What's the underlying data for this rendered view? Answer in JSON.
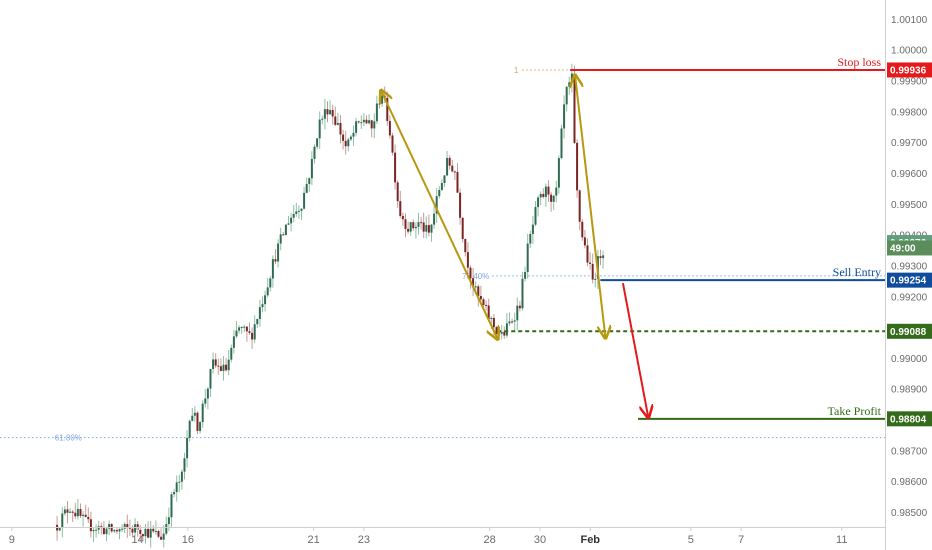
{
  "chart_data": {
    "type": "candlestick",
    "y_ticks": [
      "1.00100",
      "1.00000",
      "0.99900",
      "0.99800",
      "0.99700",
      "0.99600",
      "0.99500",
      "0.99400",
      "0.99300",
      "0.99200",
      "0.99100",
      "0.99000",
      "0.98900",
      "0.98800",
      "0.98700",
      "0.98600",
      "0.98500"
    ],
    "x_ticks": [
      {
        "label": "9",
        "day": 9
      },
      {
        "label": "14",
        "day": 14
      },
      {
        "label": "16",
        "day": 16
      },
      {
        "label": "21",
        "day": 21
      },
      {
        "label": "23",
        "day": 23
      },
      {
        "label": "28",
        "day": 28
      },
      {
        "label": "30",
        "day": 30
      },
      {
        "label": "Feb",
        "day": 32,
        "bold": true
      },
      {
        "label": "5",
        "day": 36
      },
      {
        "label": "7",
        "day": 38
      },
      {
        "label": "11",
        "day": 42
      }
    ],
    "ylim": [
      0.98453,
      1.00163
    ],
    "xlim": [
      8.53,
      43.72
    ],
    "price_path": [
      [
        10.8,
        0.9846
      ],
      [
        11.3,
        0.9852
      ],
      [
        12.0,
        0.9846
      ],
      [
        13.0,
        0.9844
      ],
      [
        14.0,
        0.9845
      ],
      [
        15.0,
        0.9842
      ],
      [
        15.4,
        0.9856
      ],
      [
        15.8,
        0.9862
      ],
      [
        16.1,
        0.9884
      ],
      [
        16.4,
        0.9878
      ],
      [
        17.0,
        0.9898
      ],
      [
        17.5,
        0.9896
      ],
      [
        18.0,
        0.991
      ],
      [
        18.5,
        0.9907
      ],
      [
        19.0,
        0.992
      ],
      [
        19.5,
        0.9934
      ],
      [
        20.0,
        0.9945
      ],
      [
        20.5,
        0.995
      ],
      [
        20.9,
        0.9962
      ],
      [
        21.2,
        0.9976
      ],
      [
        21.6,
        0.9982
      ],
      [
        22.0,
        0.9975
      ],
      [
        22.3,
        0.9968
      ],
      [
        22.7,
        0.9975
      ],
      [
        23.0,
        0.9978
      ],
      [
        23.3,
        0.9974
      ],
      [
        23.7,
        0.9987
      ],
      [
        24.0,
        0.9976
      ],
      [
        24.4,
        0.9948
      ],
      [
        24.8,
        0.9942
      ],
      [
        25.2,
        0.9944
      ],
      [
        25.6,
        0.994
      ],
      [
        26.0,
        0.9955
      ],
      [
        26.3,
        0.9963
      ],
      [
        26.6,
        0.9962
      ],
      [
        27.0,
        0.9936
      ],
      [
        27.4,
        0.9922
      ],
      [
        27.8,
        0.9916
      ],
      [
        28.2,
        0.991
      ],
      [
        28.5,
        0.9907
      ],
      [
        28.9,
        0.9913
      ],
      [
        29.2,
        0.9918
      ],
      [
        29.5,
        0.9935
      ],
      [
        29.9,
        0.995
      ],
      [
        30.3,
        0.9955
      ],
      [
        30.6,
        0.995
      ],
      [
        31.0,
        0.9985
      ],
      [
        31.3,
        0.9991
      ],
      [
        31.4,
        0.996
      ],
      [
        31.6,
        0.9943
      ],
      [
        31.9,
        0.9932
      ],
      [
        32.1,
        0.9925
      ],
      [
        32.4,
        0.9934
      ],
      [
        32.6,
        0.9937
      ]
    ],
    "annotations": {
      "stop_loss": {
        "label": "Stop loss",
        "value": "0.99936",
        "price": 0.99936,
        "x_start": 31.2,
        "color": "#e5191c"
      },
      "sell_entry": {
        "label": "Sell Entry",
        "value": "0.99254",
        "price": 0.99254,
        "x_start": 32.4,
        "color": "#0f4c9c"
      },
      "support": {
        "value": "0.99088",
        "price": 0.99088,
        "x_start": 28.3,
        "color": "#336b1a"
      },
      "take_profit": {
        "label": "Take Profit",
        "value": "0.98804",
        "price": 0.98804,
        "x_start": 33.9,
        "color": "#336b1a"
      },
      "current_price": {
        "value": "0.99376",
        "countdown": "49:00",
        "price": 0.99376,
        "color": "#5f9f7f",
        "countdown_color": "#5a8d5a"
      },
      "fib_618": {
        "label": "61.80%",
        "price": 0.98743,
        "x_start": 8.53,
        "x_label": 11.9
      },
      "fib_mid": {
        "label": "76.40%",
        "price": 0.99268,
        "x_start": 28.1,
        "x_label": 28.1
      },
      "fib_top": {
        "label": "1",
        "price": 0.99936,
        "x_start": 29.3,
        "x_label": 29.2
      }
    },
    "pattern_arrows": [
      {
        "from": [
          23.7,
          0.99866
        ],
        "to": [
          28.3,
          0.99066
        ],
        "color": "#b8980c"
      },
      {
        "from": [
          31.4,
          0.99915
        ],
        "to": [
          32.6,
          0.9907
        ],
        "color": "#b8980c"
      }
    ],
    "projection_arrow": {
      "from": [
        33.3,
        0.99244
      ],
      "to": [
        34.3,
        0.98812
      ],
      "color": "#e5191c"
    }
  }
}
